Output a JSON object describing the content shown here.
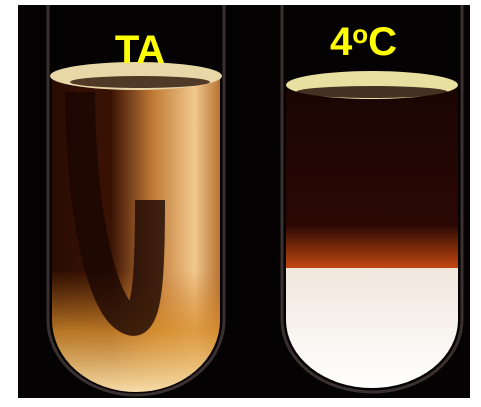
{
  "labels": {
    "left": "TA",
    "right": {
      "number": "4",
      "superscript": "o",
      "unit": "C"
    }
  }
}
